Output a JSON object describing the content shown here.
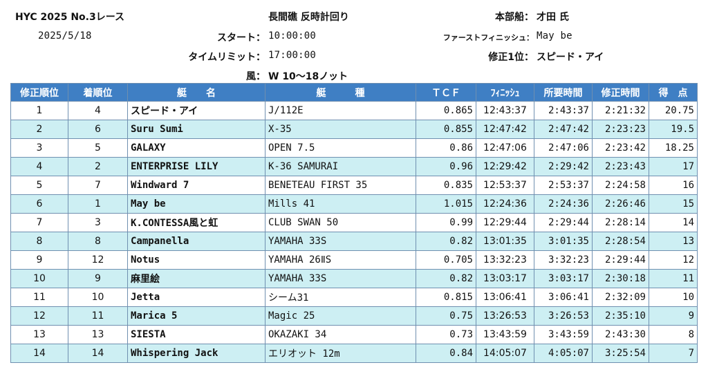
{
  "header": {
    "race_title": "HYC 2025 No.3レース",
    "race_date": "2025/5/18",
    "course": "長間礁 反時計回り",
    "committee_label": "本部船：",
    "committee_value": "才田 氏",
    "start_label": "スタート：",
    "start_value": "10:00:00",
    "first_finish_label": "ファーストフィニッシュ：",
    "first_finish_value": "May be",
    "time_limit_label": "タイムリミット：",
    "time_limit_value": "17:00:00",
    "corrected_first_label": "修正1位：",
    "corrected_first_value": "スピード・アイ",
    "wind_label": "風：",
    "wind_value": "W 10〜18ノット"
  },
  "table": {
    "columns": [
      "修正順位",
      "着順位",
      "艇　　名",
      "艇　　　種",
      "ＴＣＦ",
      "ﾌｨﾆｯｼｭ",
      "所要時間",
      "修正時間",
      "得　点"
    ],
    "rows": [
      [
        "1",
        "4",
        "スピード・アイ",
        "J/112E",
        "0.865",
        "12:43:37",
        "2:43:37",
        "2:21:32",
        "20.75"
      ],
      [
        "2",
        "6",
        "Suru Sumi",
        "X-35",
        "0.855",
        "12:47:42",
        "2:47:42",
        "2:23:23",
        "19.5"
      ],
      [
        "3",
        "5",
        "GALAXY",
        "OPEN 7.5",
        "0.86",
        "12:47:06",
        "2:47:06",
        "2:23:42",
        "18.25"
      ],
      [
        "4",
        "2",
        "ENTERPRISE LILY",
        "K-36 SAMURAI",
        "0.96",
        "12:29:42",
        "2:29:42",
        "2:23:43",
        "17"
      ],
      [
        "5",
        "7",
        "Windward 7",
        "BENETEAU FIRST 35",
        "0.835",
        "12:53:37",
        "2:53:37",
        "2:24:58",
        "16"
      ],
      [
        "6",
        "1",
        "May be",
        "Mills 41",
        "1.015",
        "12:24:36",
        "2:24:36",
        "2:26:46",
        "15"
      ],
      [
        "7",
        "3",
        "K.CONTESSA風と虹",
        "CLUB SWAN 50",
        "0.99",
        "12:29:44",
        "2:29:44",
        "2:28:14",
        "14"
      ],
      [
        "8",
        "8",
        "Campanella",
        "YAMAHA 33S",
        "0.82",
        "13:01:35",
        "3:01:35",
        "2:28:54",
        "13"
      ],
      [
        "9",
        "12",
        "Notus",
        "YAMAHA 26ⅡS",
        "0.705",
        "13:32:23",
        "3:32:23",
        "2:29:44",
        "12"
      ],
      [
        "10",
        "9",
        "麻里絵",
        "YAMAHA 33S",
        "0.82",
        "13:03:17",
        "3:03:17",
        "2:30:18",
        "11"
      ],
      [
        "11",
        "10",
        "Jetta",
        "シーム31",
        "0.815",
        "13:06:41",
        "3:06:41",
        "2:32:09",
        "10"
      ],
      [
        "12",
        "11",
        "Marica 5",
        "Magic 25",
        "0.75",
        "13:26:53",
        "3:26:53",
        "2:35:10",
        "9"
      ],
      [
        "13",
        "13",
        "SIESTA",
        "OKAZAKI 34",
        "0.73",
        "13:43:59",
        "3:43:59",
        "2:43:30",
        "8"
      ],
      [
        "14",
        "14",
        "Whispering Jack",
        "エリオット 12m",
        "0.84",
        "14:05:07",
        "4:05:07",
        "3:25:54",
        "7"
      ]
    ]
  },
  "colors": {
    "header_bg": "#3f7fc4",
    "row_alt_bg": "#cdeff3"
  }
}
